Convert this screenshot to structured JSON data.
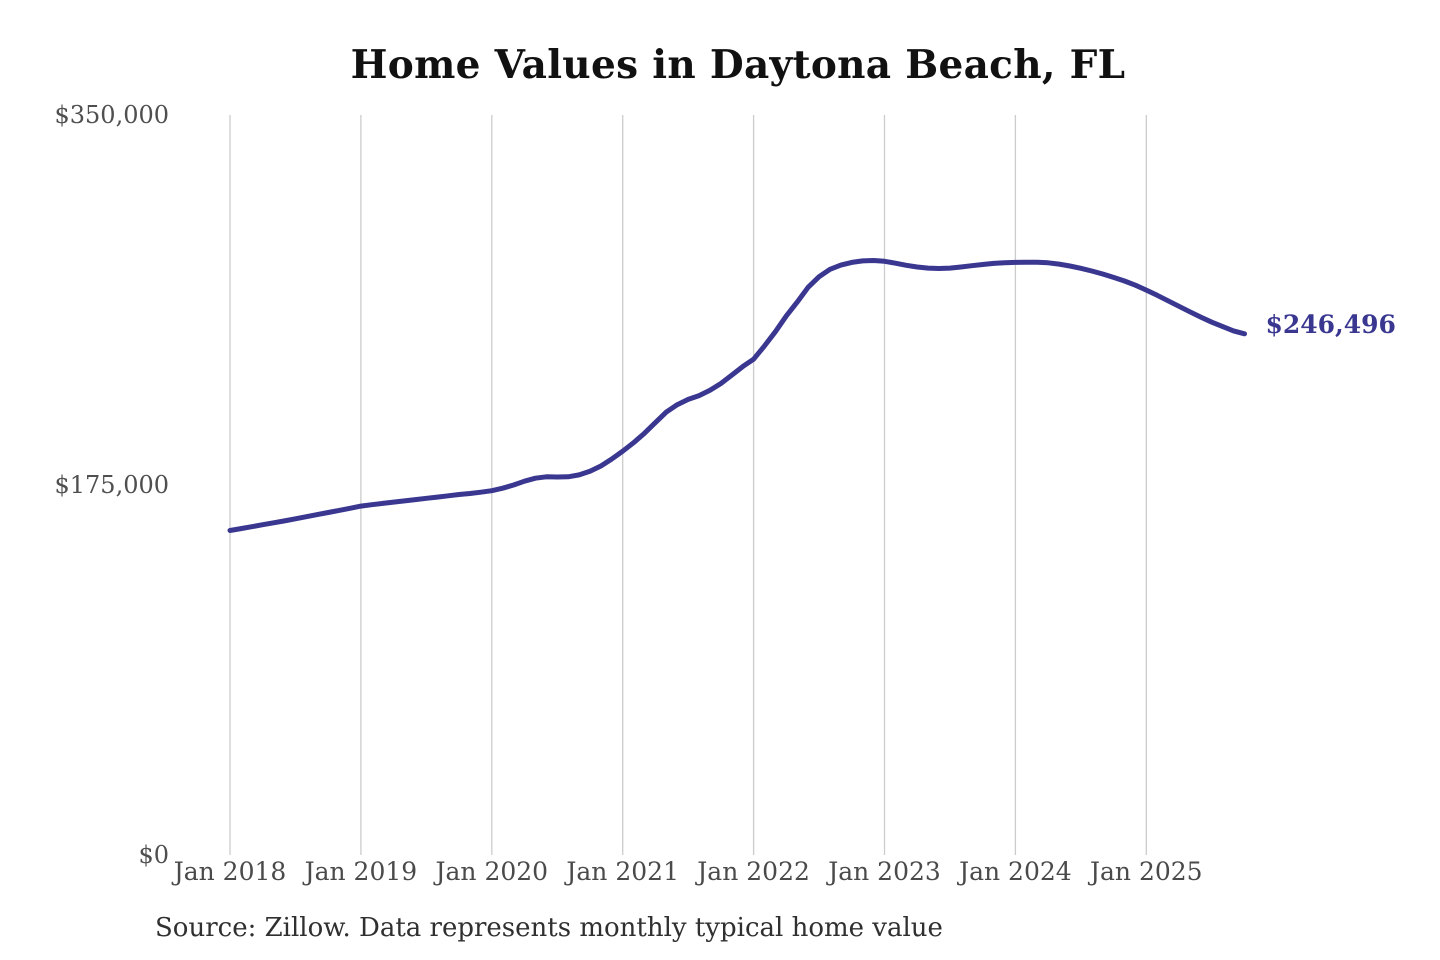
{
  "chart": {
    "title": "Home Values in Daytona Beach, FL",
    "end_label": "$246,496",
    "source_note": "Source: Zillow. Data represents monthly typical home value"
  },
  "chart_data": {
    "type": "line",
    "title": "Home Values in Daytona Beach, FL",
    "series_name": "Monthly typical home value",
    "x_start": "Jan 2018",
    "x_end": "Oct 2025",
    "x_interval": "monthly",
    "x_tick_labels": [
      "Jan 2018",
      "Jan 2019",
      "Jan 2020",
      "Jan 2021",
      "Jan 2022",
      "Jan 2023",
      "Jan 2024",
      "Jan 2025"
    ],
    "y_ticks": [
      {
        "label": "$350,000",
        "value": 350000
      },
      {
        "label": "$175,000",
        "value": 175000
      },
      {
        "label": "$0",
        "value": 0
      }
    ],
    "ylim": [
      0,
      350000
    ],
    "grid": "vertical-only",
    "grid_color": "#cccccc",
    "line_color": "#3a3790",
    "legend": "none",
    "final_value": 246496,
    "final_label": "$246,496",
    "values": [
      153500,
      154400,
      155300,
      156200,
      157100,
      158000,
      159000,
      160000,
      161000,
      162000,
      163000,
      164000,
      165000,
      165700,
      166300,
      166900,
      167500,
      168100,
      168700,
      169300,
      169900,
      170500,
      171000,
      171600,
      172300,
      173500,
      175000,
      176800,
      178200,
      178900,
      178800,
      178900,
      179800,
      181500,
      184000,
      187300,
      191000,
      195000,
      199500,
      204500,
      209500,
      213000,
      215500,
      217300,
      219800,
      223000,
      227000,
      231000,
      234500,
      240800,
      247500,
      255000,
      261500,
      268500,
      273500,
      277000,
      279000,
      280300,
      281000,
      281200,
      280800,
      279900,
      278900,
      278100,
      277600,
      277400,
      277600,
      278100,
      278700,
      279300,
      279800,
      280100,
      280300,
      280400,
      280400,
      280100,
      279500,
      278600,
      277500,
      276200,
      274800,
      273200,
      271500,
      269500,
      267200,
      264700,
      262100,
      259500,
      256900,
      254400,
      252000,
      249900,
      247900,
      246496
    ]
  }
}
